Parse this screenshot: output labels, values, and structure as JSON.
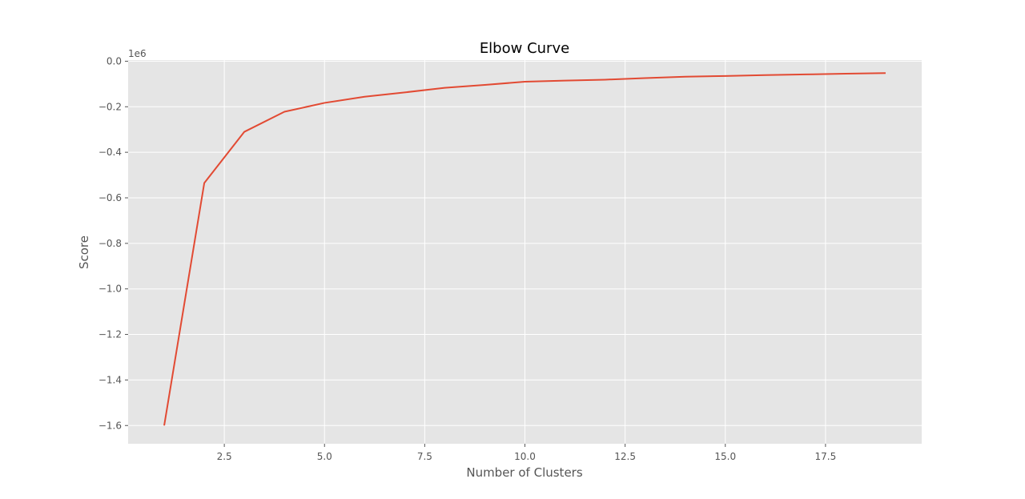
{
  "chart_data": {
    "type": "line",
    "title": "Elbow Curve",
    "xlabel": "Number of Clusters",
    "ylabel": "Score",
    "y_offset_label": "1e6",
    "xlim": [
      0.1,
      19.9
    ],
    "ylim": [
      -1.68,
      0.005
    ],
    "x_ticks": [
      2.5,
      5.0,
      7.5,
      10.0,
      12.5,
      15.0,
      17.5
    ],
    "x_tick_labels": [
      "2.5",
      "5.0",
      "7.5",
      "10.0",
      "12.5",
      "15.0",
      "17.5"
    ],
    "y_ticks": [
      0.0,
      -0.2,
      -0.4,
      -0.6,
      -0.8,
      -1.0,
      -1.2,
      -1.4,
      -1.6
    ],
    "y_tick_labels": [
      "0.0",
      "−0.2",
      "−0.4",
      "−0.6",
      "−0.8",
      "−1.0",
      "−1.2",
      "−1.4",
      "−1.6"
    ],
    "grid": true,
    "series": [
      {
        "color": "#e24a33",
        "x": [
          1,
          2,
          3,
          4,
          5,
          6,
          7,
          8,
          9,
          10,
          11,
          12,
          13,
          14,
          15,
          16,
          17,
          18,
          19
        ],
        "y": [
          -1.6,
          -0.535,
          -0.31,
          -0.222,
          -0.183,
          -0.156,
          -0.137,
          -0.117,
          -0.104,
          -0.09,
          -0.085,
          -0.081,
          -0.074,
          -0.068,
          -0.065,
          -0.061,
          -0.058,
          -0.055,
          -0.052
        ]
      }
    ]
  },
  "colors": {
    "plot_background": "#e5e5e5",
    "grid": "#ffffff",
    "line": "#e24a33"
  }
}
